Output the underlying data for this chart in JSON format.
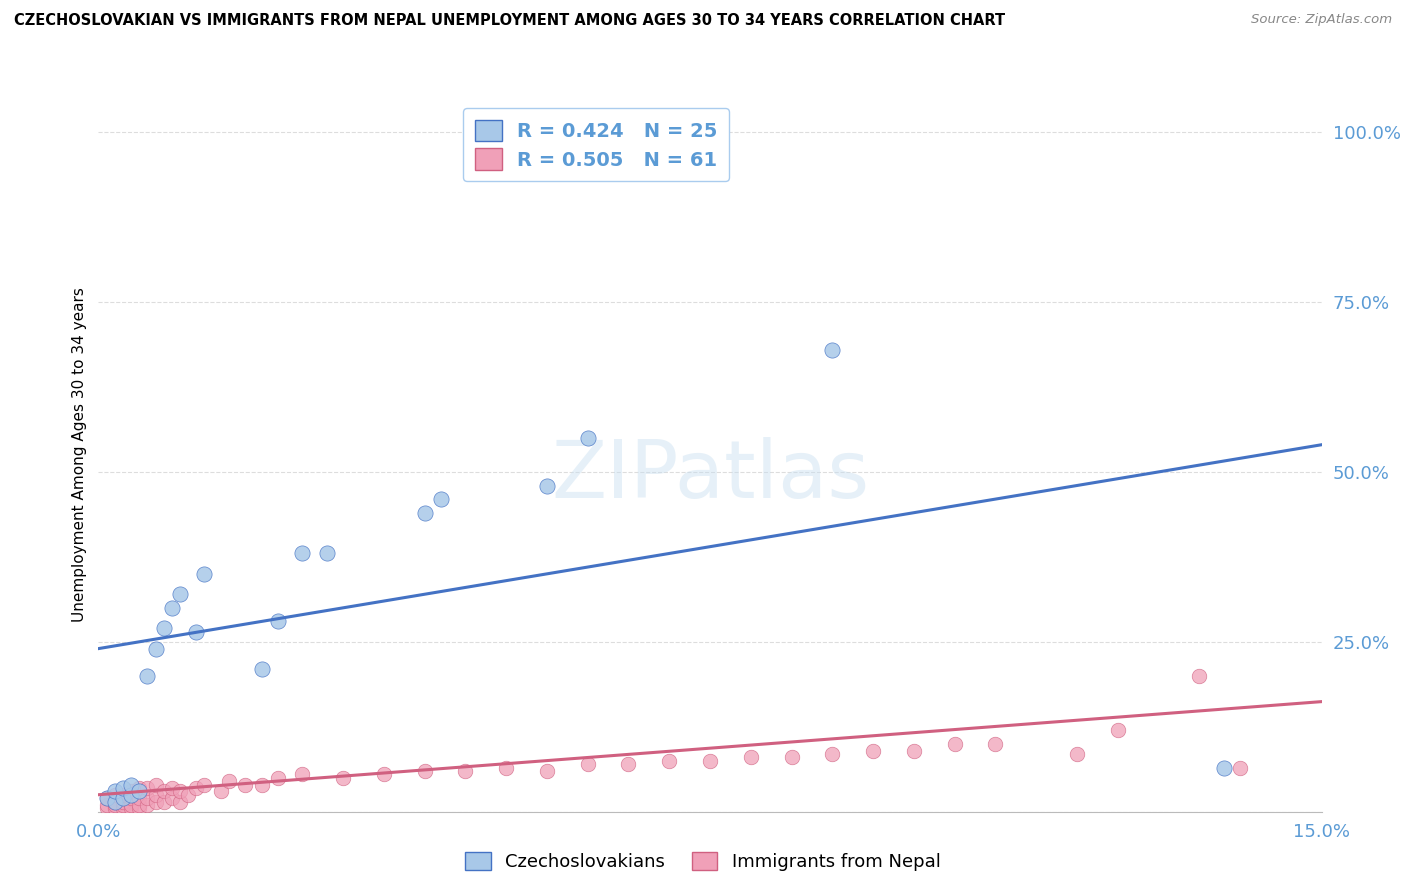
{
  "title": "CZECHOSLOVAKIAN VS IMMIGRANTS FROM NEPAL UNEMPLOYMENT AMONG AGES 30 TO 34 YEARS CORRELATION CHART",
  "source": "Source: ZipAtlas.com",
  "xlim": [
    0.0,
    0.15
  ],
  "ylim": [
    0.0,
    1.05
  ],
  "ylabel": "Unemployment Among Ages 30 to 34 years",
  "legend_r1": "R = 0.424",
  "legend_n1": "N = 25",
  "legend_r2": "R = 0.505",
  "legend_n2": "N = 61",
  "legend_series1_label": "Czechoslovakians",
  "legend_series2_label": "Immigrants from Nepal",
  "color_blue": "#A8C8E8",
  "color_pink": "#F0A0B8",
  "color_blue_line": "#4472C4",
  "color_pink_line": "#D06080",
  "color_axis_text": "#5B9BD5",
  "watermark_text": "ZIPatlas",
  "blue_scatter_x": [
    0.001,
    0.002,
    0.002,
    0.003,
    0.003,
    0.004,
    0.004,
    0.005,
    0.006,
    0.007,
    0.008,
    0.009,
    0.01,
    0.012,
    0.013,
    0.02,
    0.022,
    0.025,
    0.028,
    0.04,
    0.042,
    0.055,
    0.06,
    0.09,
    0.138
  ],
  "blue_scatter_y": [
    0.02,
    0.015,
    0.03,
    0.02,
    0.035,
    0.025,
    0.04,
    0.03,
    0.2,
    0.24,
    0.27,
    0.3,
    0.32,
    0.265,
    0.35,
    0.21,
    0.28,
    0.38,
    0.38,
    0.44,
    0.46,
    0.48,
    0.55,
    0.68,
    0.065
  ],
  "pink_scatter_x": [
    0.001,
    0.001,
    0.001,
    0.002,
    0.002,
    0.002,
    0.002,
    0.003,
    0.003,
    0.003,
    0.003,
    0.004,
    0.004,
    0.004,
    0.004,
    0.005,
    0.005,
    0.005,
    0.005,
    0.006,
    0.006,
    0.006,
    0.007,
    0.007,
    0.007,
    0.008,
    0.008,
    0.009,
    0.009,
    0.01,
    0.01,
    0.011,
    0.012,
    0.013,
    0.015,
    0.016,
    0.018,
    0.02,
    0.022,
    0.025,
    0.03,
    0.035,
    0.04,
    0.045,
    0.05,
    0.055,
    0.06,
    0.065,
    0.07,
    0.075,
    0.08,
    0.085,
    0.09,
    0.095,
    0.1,
    0.105,
    0.11,
    0.12,
    0.125,
    0.135,
    0.14
  ],
  "pink_scatter_y": [
    0.005,
    0.01,
    0.02,
    0.005,
    0.01,
    0.015,
    0.025,
    0.005,
    0.01,
    0.015,
    0.025,
    0.005,
    0.01,
    0.02,
    0.03,
    0.005,
    0.01,
    0.02,
    0.035,
    0.01,
    0.02,
    0.035,
    0.015,
    0.025,
    0.04,
    0.015,
    0.03,
    0.02,
    0.035,
    0.015,
    0.03,
    0.025,
    0.035,
    0.04,
    0.03,
    0.045,
    0.04,
    0.04,
    0.05,
    0.055,
    0.05,
    0.055,
    0.06,
    0.06,
    0.065,
    0.06,
    0.07,
    0.07,
    0.075,
    0.075,
    0.08,
    0.08,
    0.085,
    0.09,
    0.09,
    0.1,
    0.1,
    0.085,
    0.12,
    0.2,
    0.065
  ],
  "blue_line_x": [
    0.0,
    0.15
  ],
  "blue_line_y": [
    0.24,
    0.54
  ],
  "pink_line_x": [
    0.0,
    0.15
  ],
  "pink_line_y": [
    0.025,
    0.162
  ],
  "grid_color": "#DDDDDD",
  "background_color": "#FFFFFF",
  "y_tick_vals": [
    0.0,
    0.25,
    0.5,
    0.75,
    1.0
  ],
  "y_tick_labels": [
    "",
    "25.0%",
    "50.0%",
    "75.0%",
    "100.0%"
  ],
  "x_tick_vals": [
    0.0,
    0.15
  ],
  "x_tick_labels": [
    "0.0%",
    "15.0%"
  ]
}
